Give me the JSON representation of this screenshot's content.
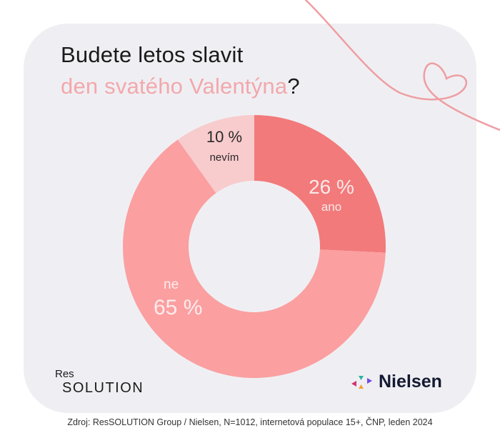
{
  "title": {
    "line1": "Budete letos slavit",
    "line2": "den svatého Valentýna",
    "question_mark": "?"
  },
  "chart_data": {
    "type": "pie",
    "subtype": "donut",
    "title": "Budete letos slavit den svatého Valentýna?",
    "categories": [
      "ano",
      "ne",
      "nevím"
    ],
    "values": [
      26,
      65,
      10
    ],
    "unit": "%",
    "colors": [
      "#f27a7b",
      "#fb9fa0",
      "#f8cbcd"
    ],
    "start_angle": "12 o'clock, clockwise",
    "labels": [
      "26 %",
      "65 %",
      "10 %"
    ]
  },
  "labels": {
    "ano": {
      "pct": "26 %",
      "name": "ano"
    },
    "ne": {
      "pct": "65 %",
      "name": "ne"
    },
    "nevim": {
      "pct": "10 %",
      "name": "nevím"
    }
  },
  "logos": {
    "res_top": "Res",
    "res_bottom": "SOLUTION",
    "nielsen": "Nielsen"
  },
  "source": "Zdroj: ResSOLUTION Group / Nielsen, N=1012, internetová populace 15+, ČNP, leden 2024",
  "colors": {
    "card_bg": "#efeff3",
    "accent_pink": "#f2a8ac",
    "heart_line": "#ee9ea2"
  }
}
